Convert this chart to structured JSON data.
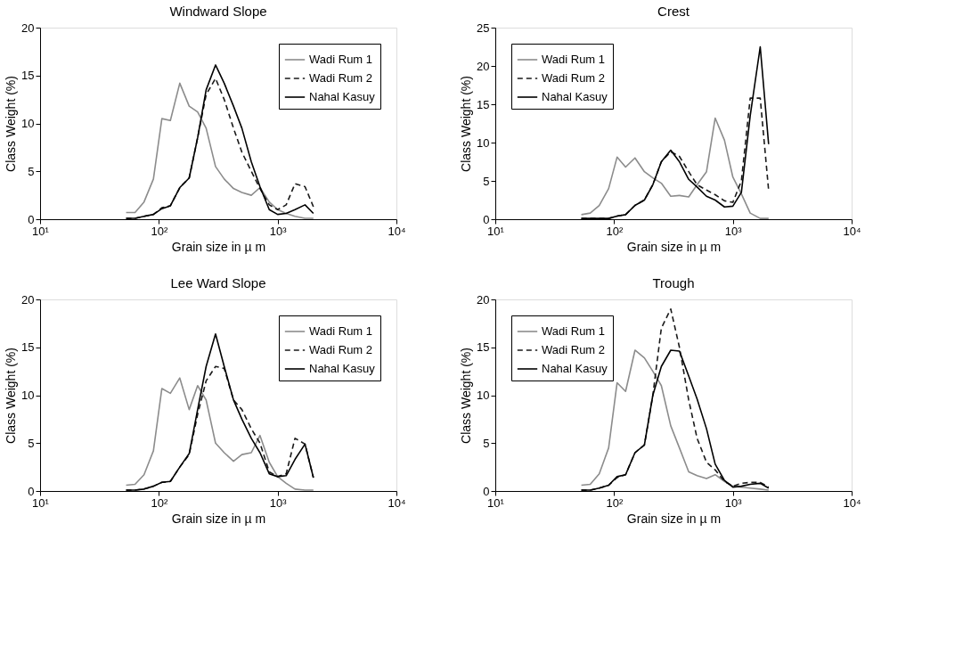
{
  "chart_data": [
    {
      "type": "line",
      "title": "Windward Slope",
      "xlabel": "Grain size in µ m",
      "ylabel": "Class Weight (%)",
      "log": "x",
      "grid": false,
      "legend": "top right",
      "x": [
        53,
        63,
        75,
        90,
        106,
        125,
        150,
        180,
        212,
        250,
        300,
        355,
        425,
        500,
        600,
        710,
        850,
        1000,
        1180,
        1400,
        1700,
        2000
      ],
      "xlim": [
        10,
        10000
      ],
      "xticks": [
        {
          "value": 10,
          "label": "10¹"
        },
        {
          "value": 100,
          "label": "10²"
        },
        {
          "value": 1000,
          "label": "10³"
        },
        {
          "value": 10000,
          "label": "10⁴"
        }
      ],
      "ylim": [
        0,
        20
      ],
      "yticks": [
        0,
        5,
        10,
        15,
        20
      ],
      "series": [
        {
          "name": "Wadi Rum 1",
          "color": "#8c8c8c",
          "line_style": "solid",
          "values": [
            0.7,
            0.7,
            1.8,
            4.2,
            10.5,
            10.3,
            14.2,
            11.8,
            11.2,
            9.5,
            5.5,
            4.2,
            3.2,
            2.8,
            2.5,
            3.3,
            1.8,
            1.0,
            0.6,
            0.3,
            0.1,
            0.1
          ]
        },
        {
          "name": "Wadi Rum 2",
          "color": "#1a1a1a",
          "line_style": "dashed",
          "values": [
            0.1,
            0.1,
            0.3,
            0.5,
            1.2,
            1.4,
            3.3,
            4.3,
            8.5,
            13,
            14.7,
            12.5,
            9.5,
            7,
            5,
            3.2,
            1.5,
            1.0,
            1.5,
            3.7,
            3.4,
            1.3
          ]
        },
        {
          "name": "Nahal Kasuy",
          "color": "#000000",
          "line_style": "solid",
          "values": [
            0.1,
            0.1,
            0.3,
            0.5,
            1.1,
            1.4,
            3.3,
            4.3,
            8.5,
            13.5,
            16.1,
            14.2,
            11.8,
            9.5,
            6,
            3.4,
            1.0,
            0.5,
            0.6,
            1.0,
            1.5,
            0.6
          ]
        }
      ]
    },
    {
      "type": "line",
      "title": "Crest",
      "xlabel": "Grain size in µ m",
      "ylabel": "Class Weight (%)",
      "log": "x",
      "grid": false,
      "legend": "top left",
      "x": [
        53,
        63,
        75,
        90,
        106,
        125,
        150,
        180,
        212,
        250,
        300,
        355,
        425,
        500,
        600,
        710,
        850,
        1000,
        1180,
        1400,
        1700,
        2000
      ],
      "xlim": [
        10,
        10000
      ],
      "xticks": [
        {
          "value": 10,
          "label": "10¹"
        },
        {
          "value": 100,
          "label": "10²"
        },
        {
          "value": 1000,
          "label": "10³"
        },
        {
          "value": 10000,
          "label": "10⁴"
        }
      ],
      "ylim": [
        0,
        25
      ],
      "yticks": [
        0,
        5,
        10,
        15,
        20,
        25
      ],
      "series": [
        {
          "name": "Wadi Rum 1",
          "color": "#8c8c8c",
          "line_style": "solid",
          "values": [
            0.6,
            0.8,
            1.8,
            4,
            8.1,
            6.8,
            8,
            6.2,
            5.4,
            4.7,
            3,
            3.1,
            2.9,
            4.5,
            6.2,
            13.2,
            10.3,
            5.5,
            3.3,
            0.8,
            0.1,
            0.1
          ]
        },
        {
          "name": "Wadi Rum 2",
          "color": "#1a1a1a",
          "line_style": "dashed",
          "values": [
            0.1,
            0.1,
            0.1,
            0.1,
            0.4,
            0.6,
            1.8,
            2.5,
            4.5,
            7.5,
            8.8,
            8.2,
            6.2,
            4.5,
            3.8,
            3.2,
            2.4,
            2.2,
            5,
            15.8,
            15.8,
            3.8
          ]
        },
        {
          "name": "Nahal Kasuy",
          "color": "#000000",
          "line_style": "solid",
          "values": [
            0.1,
            0.1,
            0.1,
            0.1,
            0.4,
            0.6,
            1.8,
            2.5,
            4.5,
            7.5,
            9.0,
            7.5,
            5.2,
            4.2,
            3.0,
            2.5,
            1.6,
            1.7,
            3.5,
            13.5,
            22.5,
            9.8
          ]
        }
      ]
    },
    {
      "type": "line",
      "title": "Lee Ward Slope",
      "xlabel": "Grain size in µ m",
      "ylabel": "Class Weight (%)",
      "log": "x",
      "grid": false,
      "legend": "top right",
      "x": [
        53,
        63,
        75,
        90,
        106,
        125,
        150,
        180,
        212,
        250,
        300,
        355,
        425,
        500,
        600,
        710,
        850,
        1000,
        1180,
        1400,
        1700,
        2000
      ],
      "xlim": [
        10,
        10000
      ],
      "xticks": [
        {
          "value": 10,
          "label": "10¹"
        },
        {
          "value": 100,
          "label": "10²"
        },
        {
          "value": 1000,
          "label": "10³"
        },
        {
          "value": 10000,
          "label": "10⁴"
        }
      ],
      "ylim": [
        0,
        20
      ],
      "yticks": [
        0,
        5,
        10,
        15,
        20
      ],
      "series": [
        {
          "name": "Wadi Rum 1",
          "color": "#8c8c8c",
          "line_style": "solid",
          "values": [
            0.6,
            0.7,
            1.7,
            4.2,
            10.7,
            10.2,
            11.8,
            8.5,
            11,
            9.5,
            5,
            4,
            3.1,
            3.8,
            4,
            5.8,
            3,
            1.5,
            0.8,
            0.2,
            0.1,
            0.1
          ]
        },
        {
          "name": "Wadi Rum 2",
          "color": "#1a1a1a",
          "line_style": "dashed",
          "values": [
            0.1,
            0.1,
            0.2,
            0.5,
            0.9,
            1,
            2.5,
            3.8,
            8,
            11.5,
            13,
            12.8,
            9.5,
            8.5,
            6.5,
            5,
            2,
            1.5,
            1.8,
            5.5,
            4.9,
            1.4
          ]
        },
        {
          "name": "Nahal Kasuy",
          "color": "#000000",
          "line_style": "solid",
          "values": [
            0.1,
            0.1,
            0.2,
            0.5,
            0.9,
            1,
            2.5,
            3.9,
            8.5,
            13,
            16.4,
            13,
            9.5,
            7.5,
            5.5,
            4,
            1.8,
            1.5,
            1.6,
            3.3,
            4.9,
            1.4
          ]
        }
      ]
    },
    {
      "type": "line",
      "title": "Trough",
      "xlabel": "Grain size in µ m",
      "ylabel": "Class Weight (%)",
      "log": "x",
      "grid": false,
      "legend": "top left",
      "x": [
        53,
        63,
        75,
        90,
        106,
        125,
        150,
        180,
        212,
        250,
        300,
        355,
        425,
        500,
        600,
        710,
        850,
        1000,
        1180,
        1400,
        1700,
        2000
      ],
      "xlim": [
        10,
        10000
      ],
      "xticks": [
        {
          "value": 10,
          "label": "10¹"
        },
        {
          "value": 100,
          "label": "10²"
        },
        {
          "value": 1000,
          "label": "10³"
        },
        {
          "value": 10000,
          "label": "10⁴"
        }
      ],
      "ylim": [
        0,
        20
      ],
      "yticks": [
        0,
        5,
        10,
        15,
        20
      ],
      "series": [
        {
          "name": "Wadi Rum 1",
          "color": "#8c8c8c",
          "line_style": "solid",
          "values": [
            0.6,
            0.7,
            1.8,
            4.5,
            11.3,
            10.4,
            14.7,
            13.9,
            12.5,
            11,
            6.8,
            4.5,
            2,
            1.6,
            1.3,
            1.7,
            1.0,
            0.5,
            0.4,
            0.3,
            0.2,
            0.1
          ]
        },
        {
          "name": "Wadi Rum 2",
          "color": "#1a1a1a",
          "line_style": "dashed",
          "values": [
            0.1,
            0.1,
            0.3,
            0.6,
            1.4,
            1.7,
            4,
            4.8,
            10,
            17,
            19,
            15,
            9.5,
            5.5,
            3,
            2.2,
            1,
            0.5,
            0.8,
            0.9,
            0.9,
            0.4
          ]
        },
        {
          "name": "Nahal Kasuy",
          "color": "#000000",
          "line_style": "solid",
          "values": [
            0.1,
            0.1,
            0.3,
            0.6,
            1.5,
            1.7,
            4,
            4.8,
            10,
            13,
            14.7,
            14.6,
            12,
            9.6,
            6.5,
            2.8,
            1.1,
            0.4,
            0.5,
            0.7,
            0.8,
            0.3
          ]
        }
      ]
    }
  ]
}
